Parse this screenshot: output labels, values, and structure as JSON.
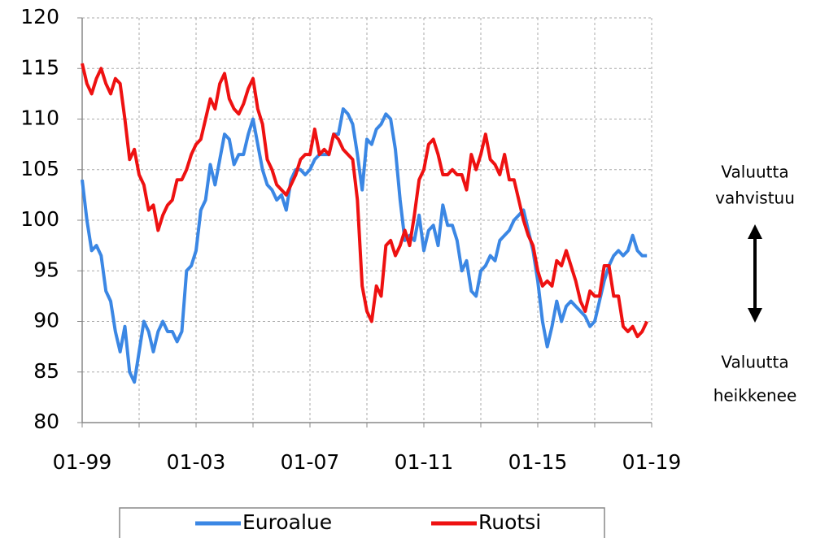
{
  "chart_data": {
    "type": "line",
    "x": [
      "1999-01",
      "1999-03",
      "1999-05",
      "1999-07",
      "1999-09",
      "1999-11",
      "2000-01",
      "2000-03",
      "2000-05",
      "2000-07",
      "2000-09",
      "2000-11",
      "2001-01",
      "2001-03",
      "2001-05",
      "2001-07",
      "2001-09",
      "2001-11",
      "2002-01",
      "2002-03",
      "2002-05",
      "2002-07",
      "2002-09",
      "2002-11",
      "2003-01",
      "2003-03",
      "2003-05",
      "2003-07",
      "2003-09",
      "2003-11",
      "2004-01",
      "2004-03",
      "2004-05",
      "2004-07",
      "2004-09",
      "2004-11",
      "2005-01",
      "2005-03",
      "2005-05",
      "2005-07",
      "2005-09",
      "2005-11",
      "2006-01",
      "2006-03",
      "2006-05",
      "2006-07",
      "2006-09",
      "2006-11",
      "2007-01",
      "2007-03",
      "2007-05",
      "2007-07",
      "2007-09",
      "2007-11",
      "2008-01",
      "2008-03",
      "2008-05",
      "2008-07",
      "2008-09",
      "2008-11",
      "2009-01",
      "2009-03",
      "2009-05",
      "2009-07",
      "2009-09",
      "2009-11",
      "2010-01",
      "2010-03",
      "2010-05",
      "2010-07",
      "2010-09",
      "2010-11",
      "2011-01",
      "2011-03",
      "2011-05",
      "2011-07",
      "2011-09",
      "2011-11",
      "2012-01",
      "2012-03",
      "2012-05",
      "2012-07",
      "2012-09",
      "2012-11",
      "2013-01",
      "2013-03",
      "2013-05",
      "2013-07",
      "2013-09",
      "2013-11",
      "2014-01",
      "2014-03",
      "2014-05",
      "2014-07",
      "2014-09",
      "2014-11",
      "2015-01",
      "2015-03",
      "2015-05",
      "2015-07",
      "2015-09",
      "2015-11",
      "2016-01",
      "2016-03",
      "2016-05",
      "2016-07",
      "2016-09",
      "2016-11",
      "2017-01",
      "2017-03",
      "2017-05",
      "2017-07",
      "2017-09",
      "2017-11",
      "2018-01",
      "2018-03",
      "2018-05",
      "2018-07",
      "2018-09",
      "2018-11"
    ],
    "series": [
      {
        "name": "Euroalue",
        "color": "#3b87e4",
        "values": [
          104,
          100,
          97,
          97.5,
          96.5,
          93,
          92,
          89,
          87,
          89.5,
          85,
          84,
          87,
          90,
          89,
          87,
          89,
          90,
          89,
          89,
          88,
          89,
          95,
          95.5,
          97,
          101,
          102,
          105.5,
          103.5,
          106,
          108.5,
          108,
          105.5,
          106.5,
          106.5,
          108.5,
          110,
          107.5,
          105,
          103.5,
          103,
          102,
          102.5,
          101,
          104,
          105,
          105,
          104.5,
          105,
          106,
          106.5,
          106.5,
          106.5,
          108.5,
          108.5,
          111,
          110.5,
          109.5,
          106.5,
          103,
          108,
          107.5,
          109,
          109.5,
          110.5,
          110,
          107,
          102,
          98,
          98.5,
          98,
          100.5,
          97,
          99,
          99.5,
          97.5,
          101.5,
          99.5,
          99.5,
          98,
          95,
          96,
          93,
          92.5,
          95,
          95.5,
          96.5,
          96,
          98,
          98.5,
          99,
          100,
          100.5,
          101,
          99,
          97,
          94,
          90,
          87.5,
          89.5,
          92,
          90,
          91.5,
          92,
          91.5,
          91,
          90.5,
          89.5,
          90,
          92,
          94,
          95.5,
          96.5,
          97,
          96.5,
          97,
          98.5,
          97,
          96.5,
          96.5
        ]
      },
      {
        "name": "Ruotsi",
        "color": "#ee1111",
        "values": [
          115.5,
          113.5,
          112.5,
          114,
          115,
          113.5,
          112.5,
          114,
          113.5,
          110,
          106,
          107,
          104.5,
          103.5,
          101,
          101.5,
          99,
          100.5,
          101.5,
          102,
          104,
          104,
          105,
          106.5,
          107.5,
          108,
          110,
          112,
          111,
          113.5,
          114.5,
          112,
          111,
          110.5,
          111.5,
          113,
          114,
          111,
          109.5,
          106,
          105,
          103.5,
          103,
          102.5,
          103.5,
          104.5,
          106,
          106.5,
          106.5,
          109,
          106.5,
          107,
          106.5,
          108.5,
          108,
          107,
          106.5,
          106,
          102,
          93.5,
          91,
          90,
          93.5,
          92.5,
          97.5,
          98,
          96.5,
          97.5,
          99,
          97.5,
          100.5,
          104,
          105,
          107.5,
          108,
          106.5,
          104.5,
          104.5,
          105,
          104.5,
          104.5,
          103,
          106.5,
          105,
          106.5,
          108.5,
          106,
          105.5,
          104.5,
          106.5,
          104,
          104,
          102,
          100,
          98.5,
          97.5,
          95,
          93.5,
          94,
          93.5,
          96,
          95.5,
          97,
          95.5,
          94,
          92,
          91,
          93,
          92.5,
          92.5,
          95.5,
          95.5,
          92.5,
          92.5,
          89.5,
          89,
          89.5,
          88.5,
          89,
          90
        ]
      }
    ],
    "xlim": [
      "1999-01",
      "2019-01"
    ],
    "xticks": [
      {
        "value": "1999-01",
        "label": "01-99"
      },
      {
        "value": "2003-01",
        "label": "01-03"
      },
      {
        "value": "2007-01",
        "label": "01-07"
      },
      {
        "value": "2011-01",
        "label": "01-11"
      },
      {
        "value": "2015-01",
        "label": "01-15"
      },
      {
        "value": "2019-01",
        "label": "01-19"
      }
    ],
    "xminor": [
      "2001-01",
      "2005-01",
      "2009-01",
      "2013-01",
      "2017-01"
    ],
    "ylim": [
      80,
      120
    ],
    "yticks": [
      80,
      85,
      90,
      95,
      100,
      105,
      110,
      115,
      120
    ],
    "grid": true,
    "legend": "bottom",
    "annotations": [
      {
        "lines": [
          "Valuutta",
          "vahvistuu"
        ]
      },
      {
        "lines": [
          "Valuutta",
          "heikkenee"
        ]
      }
    ]
  }
}
